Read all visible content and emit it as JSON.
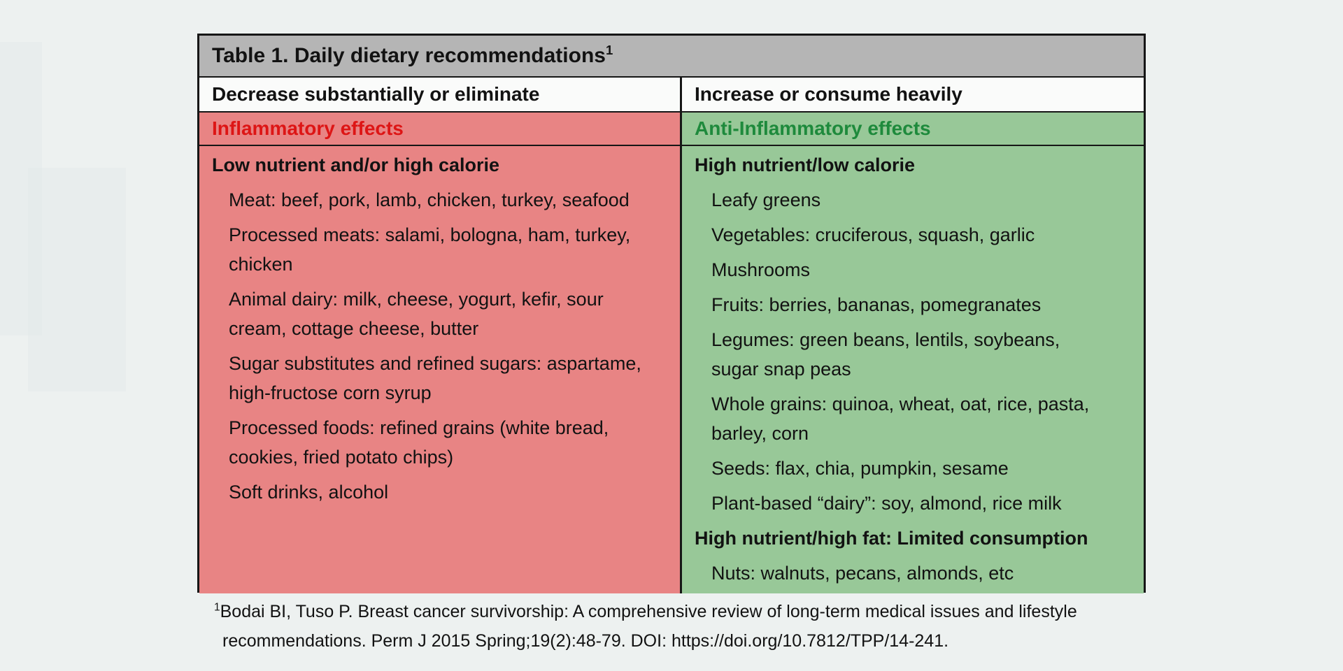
{
  "table": {
    "title": "Table 1. Daily dietary recommendations",
    "title_superscript": "1",
    "colors": {
      "page_bg": "#edf1f0",
      "title_bar_bg": "#b5b5b5",
      "header_row_bg": "#fafbfa",
      "red_bg": "#e88484",
      "red_text": "#dd1515",
      "green_bg": "#98c898",
      "green_text": "#1e8a3c",
      "border": "#161616",
      "text": "#121212"
    },
    "columns": [
      {
        "header": "Decrease substantially or eliminate",
        "effects_label": "Inflammatory effects",
        "theme": "red",
        "sections": [
          {
            "heading": "Low nutrient and/or high calorie",
            "items": [
              "Meat: beef, pork, lamb, chicken, turkey, seafood",
              "Processed meats: salami, bologna, ham, turkey,\nchicken",
              "Animal dairy: milk, cheese, yogurt, kefir, sour\ncream, cottage cheese, butter",
              "Sugar substitutes and refined sugars: aspartame,\nhigh-fructose corn syrup",
              "Processed foods: refined grains (white bread,\ncookies, fried potato chips)",
              "Soft drinks, alcohol"
            ]
          }
        ]
      },
      {
        "header": "Increase or consume heavily",
        "effects_label": "Anti-Inflammatory effects",
        "theme": "green",
        "sections": [
          {
            "heading": "High nutrient/low calorie",
            "items": [
              "Leafy greens",
              "Vegetables: cruciferous, squash, garlic",
              "Mushrooms",
              "Fruits: berries, bananas, pomegranates",
              "Legumes: green beans, lentils, soybeans,\nsugar snap peas",
              "Whole grains: quinoa, wheat, oat, rice, pasta,\nbarley, corn",
              "Seeds: flax, chia, pumpkin, sesame",
              "Plant-based “dairy”: soy, almond, rice milk"
            ]
          },
          {
            "heading": "High nutrient/high fat: Limited consumption",
            "items": [
              "Nuts: walnuts, pecans, almonds, etc"
            ]
          }
        ]
      }
    ]
  },
  "footnote": {
    "marker": "1",
    "line1": "Bodai BI, Tuso P. Breast cancer survivorship: A comprehensive review of long-term medical issues and lifestyle",
    "line2": "recommendations. Perm J 2015 Spring;19(2):48-79. DOI: https://doi.org/10.7812/TPP/14-241."
  }
}
